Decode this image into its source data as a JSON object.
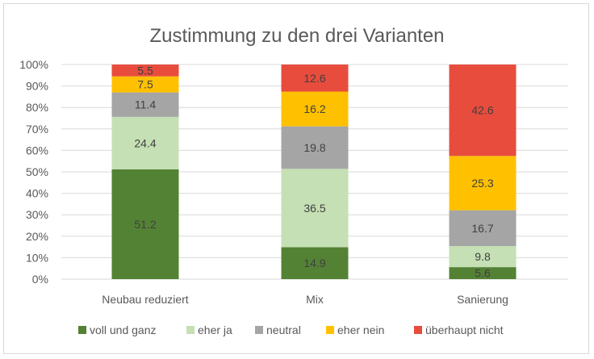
{
  "chart_data": {
    "type": "bar",
    "stacked": true,
    "title": "Zustimmung zu den drei Varianten",
    "categories": [
      "Neubau reduziert",
      "Mix",
      "Sanierung"
    ],
    "series": [
      {
        "name": "voll und ganz",
        "color": "#548235",
        "values": [
          51.2,
          14.9,
          5.6
        ]
      },
      {
        "name": "eher ja",
        "color": "#c5e0b4",
        "values": [
          24.4,
          36.5,
          9.8
        ]
      },
      {
        "name": "neutral",
        "color": "#a5a5a5",
        "values": [
          11.4,
          19.8,
          16.7
        ]
      },
      {
        "name": "eher nein",
        "color": "#ffc000",
        "values": [
          7.5,
          16.2,
          25.3
        ]
      },
      {
        "name": "überhaupt nicht",
        "color": "#e84c3d",
        "values": [
          5.5,
          12.6,
          42.6
        ]
      }
    ],
    "ylim": [
      0,
      100
    ],
    "yticks": [
      "0%",
      "10%",
      "20%",
      "30%",
      "40%",
      "50%",
      "60%",
      "70%",
      "80%",
      "90%",
      "100%"
    ],
    "grid": true,
    "legend": "bottom"
  }
}
